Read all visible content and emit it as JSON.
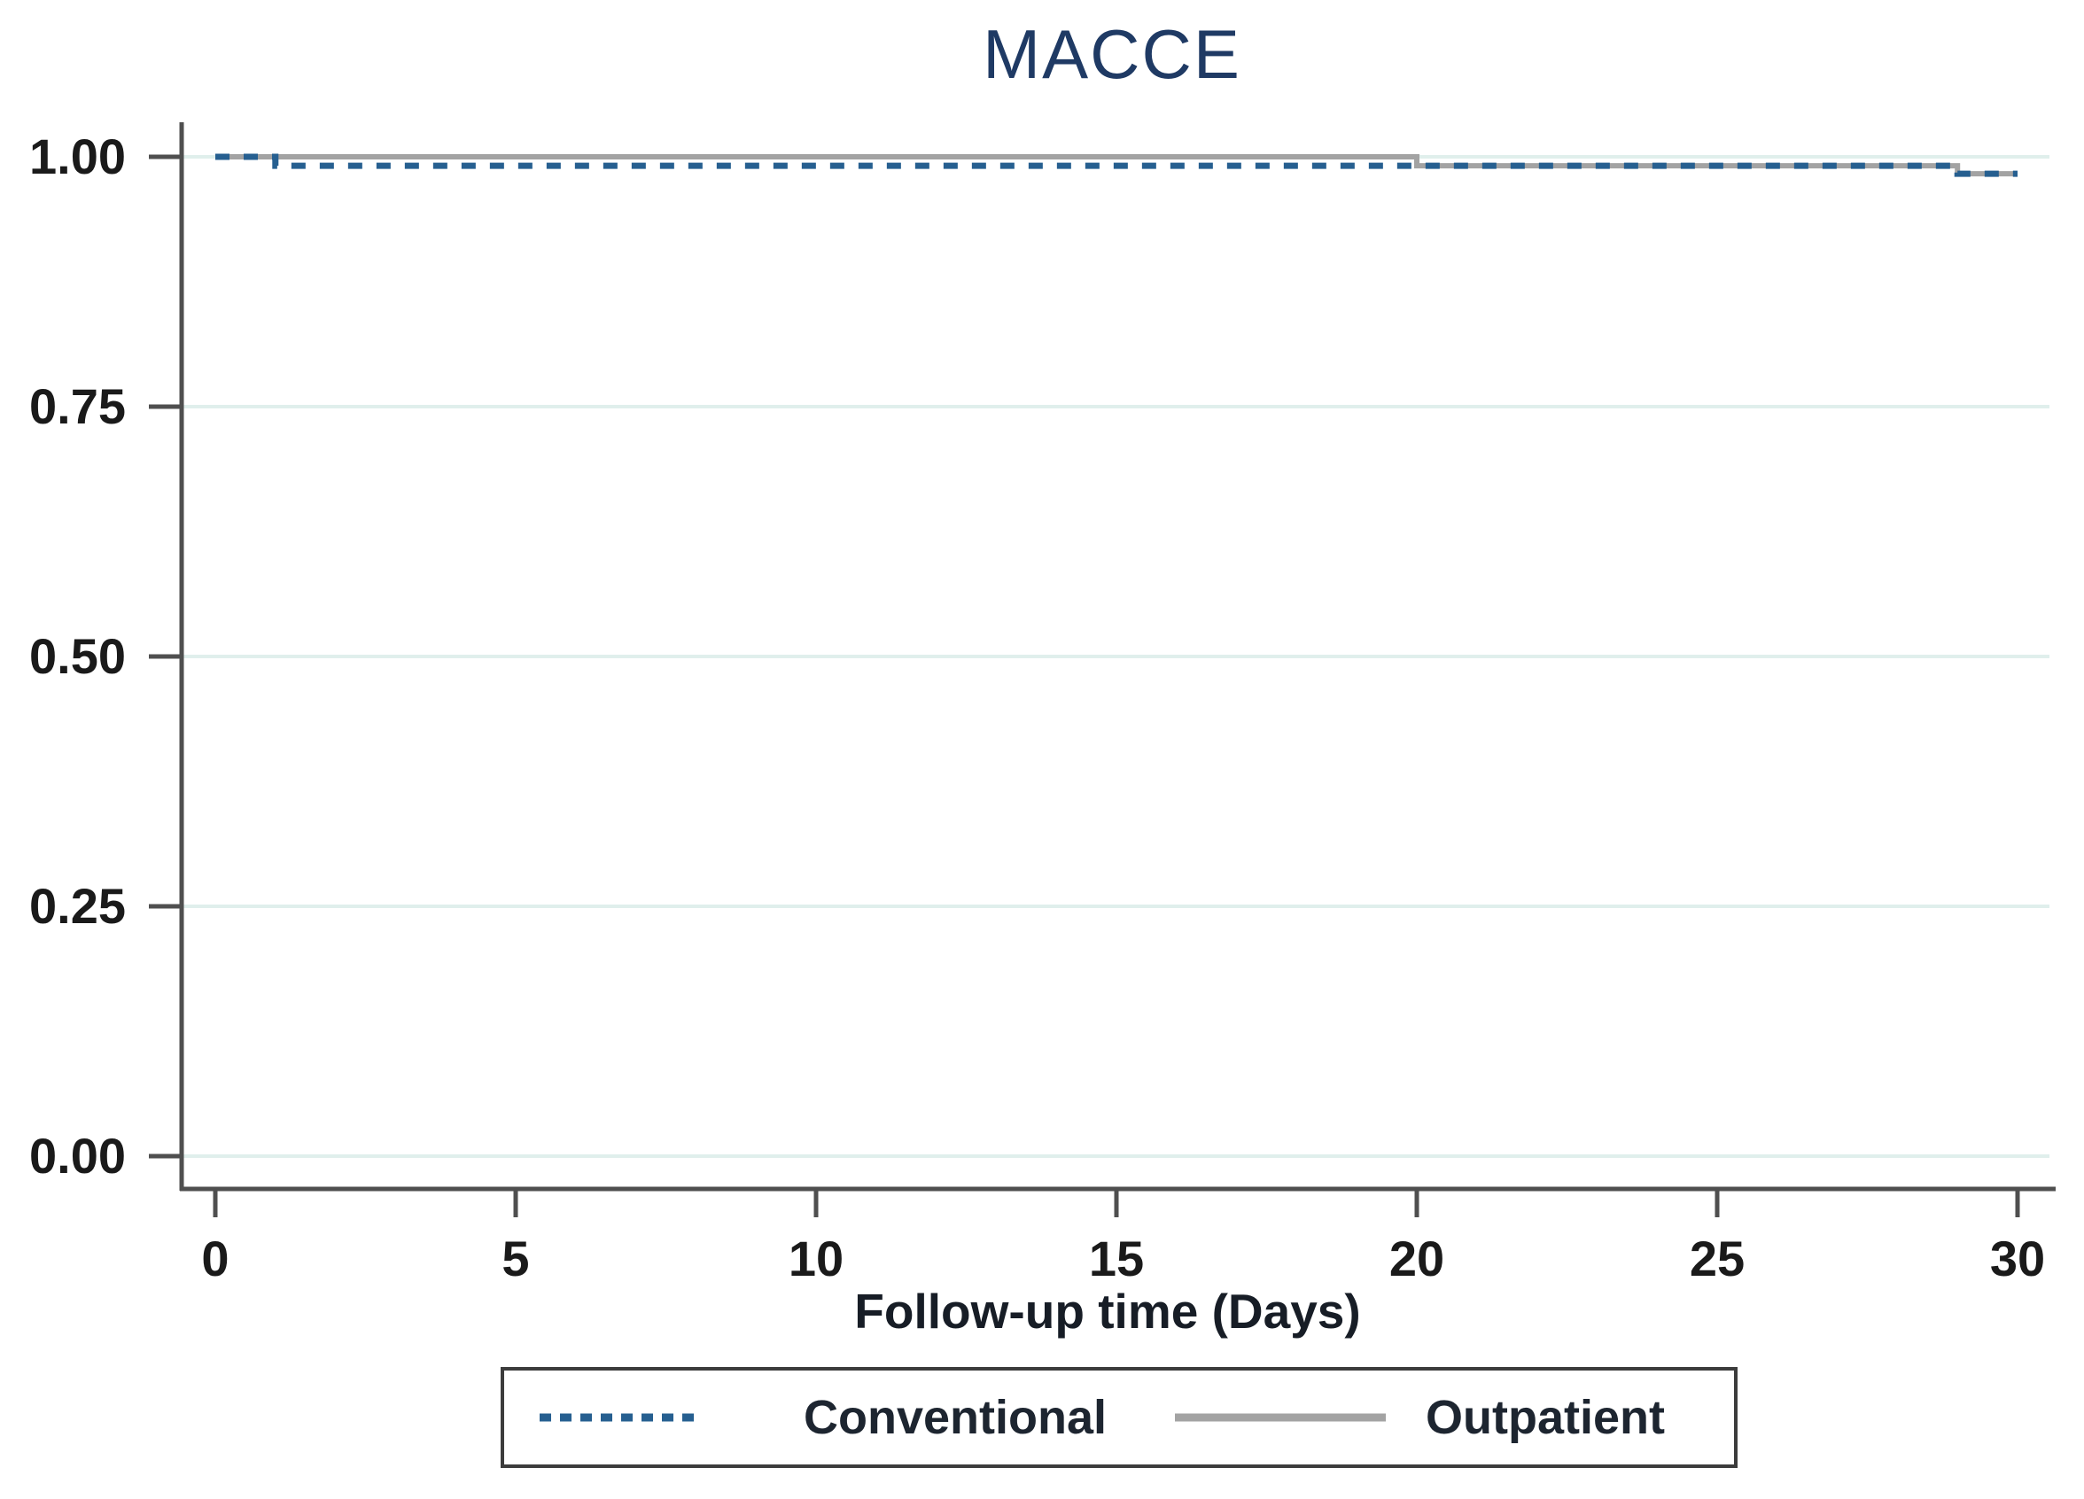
{
  "chart_data": {
    "type": "line",
    "subtype": "kaplan-meier-step",
    "title": "MACCE",
    "xlabel": "Follow-up time (Days)",
    "ylabel": "",
    "xlim": [
      0,
      30
    ],
    "ylim": [
      0.0,
      1.0
    ],
    "x_tick_values": [
      0,
      5,
      10,
      15,
      20,
      25,
      30
    ],
    "x_tick_labels": [
      "0",
      "5",
      "10",
      "15",
      "20",
      "25",
      "30"
    ],
    "y_tick_values": [
      1.0,
      0.75,
      0.5,
      0.25,
      0.0
    ],
    "y_tick_labels": [
      "1.00",
      "0.75",
      "0.50",
      "0.25",
      "0.00"
    ],
    "grid": "horizontal-light",
    "legend_position": "bottom-center-boxed",
    "series": [
      {
        "name": "Conventional",
        "style": "dashed",
        "color": "#265f90",
        "stroke_width": 7,
        "dash_pattern": "16 16",
        "points": [
          [
            0,
            1.0
          ],
          [
            1,
            1.0
          ],
          [
            1,
            0.991
          ],
          [
            29,
            0.991
          ],
          [
            29,
            0.983
          ],
          [
            30,
            0.983
          ]
        ]
      },
      {
        "name": "Outpatient",
        "style": "solid",
        "color": "#a3a3a3",
        "stroke_width": 6,
        "dash_pattern": "",
        "points": [
          [
            0,
            1.0
          ],
          [
            20,
            1.0
          ],
          [
            20,
            0.991
          ],
          [
            29,
            0.991
          ],
          [
            29,
            0.983
          ],
          [
            30,
            0.983
          ]
        ]
      }
    ]
  },
  "colors": {
    "title": "#1f3a64",
    "axis": "#4f4f4f",
    "tick_label": "#1a1a1a",
    "grid": "#e0efec",
    "legend_border": "#3c3c3c",
    "legend_text": "#1d2530",
    "background": "#ffffff"
  }
}
